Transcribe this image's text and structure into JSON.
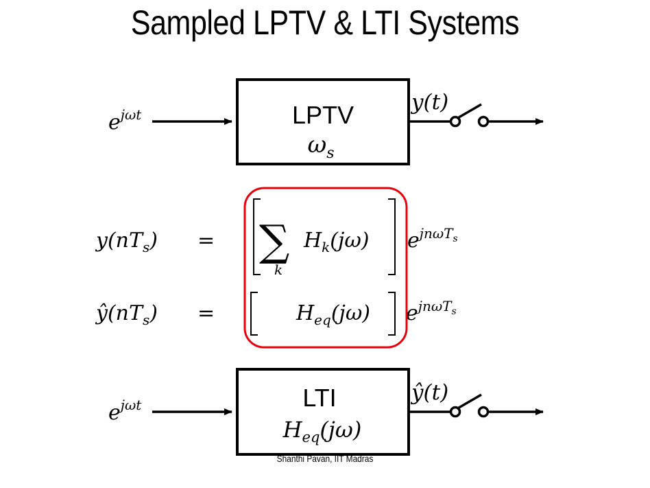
{
  "slide": {
    "title": "Sampled LPTV & LTI Systems",
    "footer": "Shanthi Pavan, IIT Madras"
  },
  "top_system": {
    "input_label": "e^{jωt}",
    "block_name": "LPTV",
    "block_param": "ω_s",
    "output_label": "y(t)"
  },
  "bottom_system": {
    "input_label": "e^{jωt}",
    "block_name": "LTI",
    "block_param": "H_eq(jω)",
    "output_label": "ŷ(t)"
  },
  "equations": {
    "eq1": {
      "lhs": "y(nT_s)",
      "relation": "=",
      "bracket_term": "Σ_k H_k(jω)",
      "rhs_factor": "e^{jnωT_s}"
    },
    "eq2": {
      "lhs": "ŷ(nT_s)",
      "relation": "=",
      "bracket_term": "H_eq(jω)",
      "rhs_factor": "e^{jnωT_s}"
    }
  },
  "highlight_color": "#e8000b"
}
